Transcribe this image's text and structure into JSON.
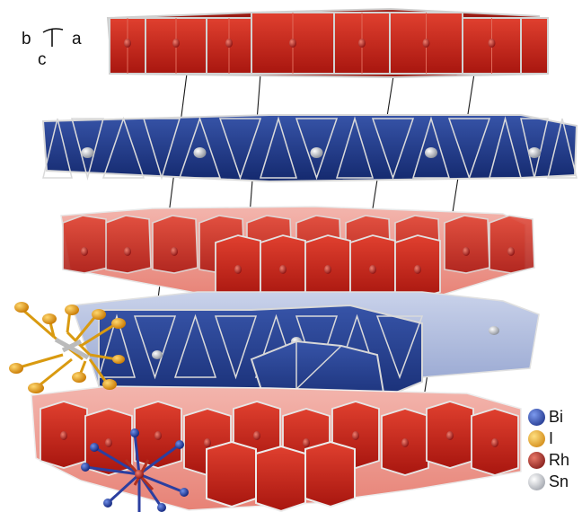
{
  "axes": {
    "b": "b",
    "a": "a",
    "c": "c"
  },
  "legend": [
    {
      "label": "Bi",
      "color": "#1f3b9e",
      "icon": "blue-sphere-icon"
    },
    {
      "label": "I",
      "color": "#f0a30a",
      "icon": "orange-sphere-icon"
    },
    {
      "label": "Rh",
      "color": "#8a1010",
      "icon": "dark-red-sphere-icon"
    },
    {
      "label": "Sn",
      "color": "#b8b8b8",
      "icon": "grey-sphere-icon"
    }
  ],
  "colors": {
    "rh_layer": "#c8231a",
    "bi_layer": "#1e3a8c",
    "edge": "#d9d9d9"
  }
}
